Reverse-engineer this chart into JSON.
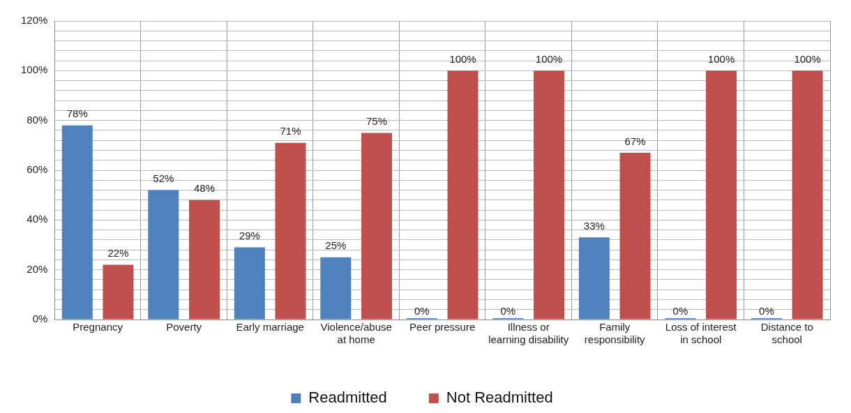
{
  "chart_data": {
    "type": "bar",
    "categories": [
      "Pregnancy",
      "Poverty",
      "Early marriage",
      "Violence/abuse\nat home",
      "Peer pressure",
      "Illness or\nlearning disability",
      "Family\nresponsibility",
      "Loss of interest\nin school",
      "Distance to\nschool"
    ],
    "series": [
      {
        "name": "Readmitted",
        "color": "#4f81bd",
        "values": [
          78,
          52,
          29,
          25,
          0,
          0,
          33,
          0,
          0
        ],
        "value_labels": [
          "78%",
          "52%",
          "29%",
          "25%",
          "0%",
          "0%",
          "33%",
          "0%",
          "0%"
        ]
      },
      {
        "name": "Not Readmitted",
        "color": "#c0504d",
        "values": [
          22,
          48,
          71,
          75,
          100,
          100,
          67,
          100,
          100
        ],
        "value_labels": [
          "22%",
          "48%",
          "71%",
          "75%",
          "100%",
          "100%",
          "67%",
          "100%",
          "100%"
        ]
      }
    ],
    "ylim": [
      0,
      120
    ],
    "yticks": [
      {
        "value": 0,
        "label": "0%"
      },
      {
        "value": 4,
        "label": null
      },
      {
        "value": 8,
        "label": null
      },
      {
        "value": 12,
        "label": null
      },
      {
        "value": 16,
        "label": null
      },
      {
        "value": 20,
        "label": "20%"
      },
      {
        "value": 24,
        "label": null
      },
      {
        "value": 28,
        "label": null
      },
      {
        "value": 32,
        "label": null
      },
      {
        "value": 36,
        "label": null
      },
      {
        "value": 40,
        "label": "40%"
      },
      {
        "value": 44,
        "label": null
      },
      {
        "value": 48,
        "label": null
      },
      {
        "value": 52,
        "label": null
      },
      {
        "value": 56,
        "label": null
      },
      {
        "value": 60,
        "label": "60%"
      },
      {
        "value": 64,
        "label": null
      },
      {
        "value": 68,
        "label": null
      },
      {
        "value": 72,
        "label": null
      },
      {
        "value": 76,
        "label": null
      },
      {
        "value": 80,
        "label": "80%"
      },
      {
        "value": 84,
        "label": null
      },
      {
        "value": 88,
        "label": null
      },
      {
        "value": 92,
        "label": null
      },
      {
        "value": 96,
        "label": null
      },
      {
        "value": 100,
        "label": "100%"
      },
      {
        "value": 104,
        "label": null
      },
      {
        "value": 108,
        "label": null
      },
      {
        "value": 112,
        "label": null
      },
      {
        "value": 116,
        "label": null
      },
      {
        "value": 120,
        "label": "120%"
      }
    ],
    "grid": true,
    "legend": "bottom"
  }
}
